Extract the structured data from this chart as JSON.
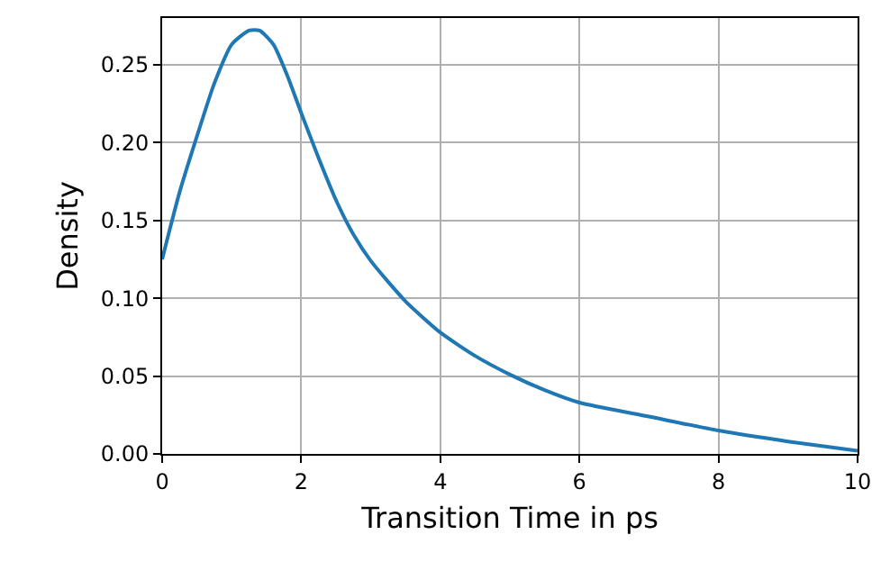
{
  "chart_data": {
    "type": "line",
    "xlabel": "Transition Time in ps",
    "ylabel": "Density",
    "x": [
      0,
      0.25,
      0.5,
      0.75,
      1,
      1.25,
      1.4,
      1.6,
      1.8,
      2,
      2.25,
      2.5,
      2.75,
      3,
      3.5,
      4,
      4.5,
      5,
      5.5,
      6,
      7,
      8,
      9,
      10
    ],
    "series": [
      {
        "color": "#1f77b4",
        "values": [
          0.125,
          0.168,
          0.204,
          0.238,
          0.263,
          0.272,
          0.272,
          0.263,
          0.243,
          0.219,
          0.19,
          0.163,
          0.141,
          0.124,
          0.098,
          0.078,
          0.063,
          0.051,
          0.041,
          0.033,
          0.024,
          0.015,
          0.008,
          0.002
        ]
      }
    ],
    "xlim": [
      0,
      10
    ],
    "xticks": [
      0,
      2,
      4,
      6,
      8,
      10
    ],
    "ylim": [
      0,
      0.28
    ],
    "yticks": [
      {
        "value": 0,
        "label": "0.00"
      },
      {
        "value": 0.05,
        "label": "0.05"
      },
      {
        "value": 0.1,
        "label": "0.10"
      },
      {
        "value": 0.15,
        "label": "0.15"
      },
      {
        "value": 0.2,
        "label": "0.20"
      },
      {
        "value": 0.25,
        "label": "0.25"
      }
    ],
    "grid": true,
    "legend": false,
    "marker": "none",
    "line_style": "solid"
  }
}
